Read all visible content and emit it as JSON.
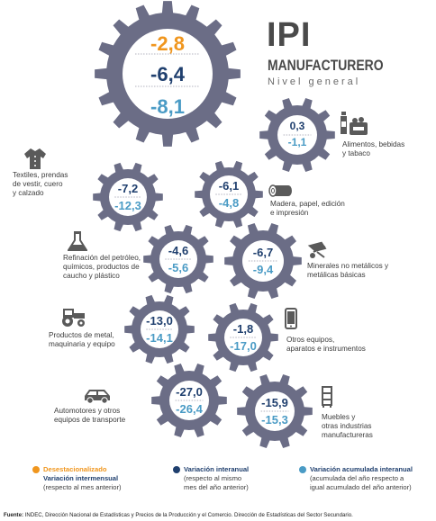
{
  "title": {
    "main": "IPI",
    "sub": "MANUFACTURERO",
    "level": "Nivel general"
  },
  "colors": {
    "gear": "#6b6d86",
    "orange": "#f0961e",
    "navy": "#1f3f6e",
    "light_blue": "#4a9bc5"
  },
  "general": {
    "desestacionalizado": "-2,8",
    "interanual": "-6,4",
    "acumulada": "-8,1"
  },
  "sectors": [
    {
      "name": "Alimentos, bebidas y tabaco",
      "interanual": "0,3",
      "acumulada": "-1,1",
      "icon": "food-bottles-icon"
    },
    {
      "name": "Textiles, prendas de vestir, cuero y calzado",
      "interanual": "-7,2",
      "acumulada": "-12,3",
      "icon": "shirt-icon"
    },
    {
      "name": "Madera, papel, edición e impresión",
      "interanual": "-6,1",
      "acumulada": "-4,8",
      "icon": "wood-log-icon"
    },
    {
      "name": "Refinación del petróleo, químicos, productos de caucho y plástico",
      "interanual": "-4,6",
      "acumulada": "-5,6",
      "icon": "flask-icon"
    },
    {
      "name": "Minerales no metálicos y metálicas básicas",
      "interanual": "-6,7",
      "acumulada": "-9,4",
      "icon": "wheelbarrow-icon"
    },
    {
      "name": "Productos de metal, maquinaria y equipo",
      "interanual": "-13,0",
      "acumulada": "-14,1",
      "icon": "tractor-icon"
    },
    {
      "name": "Otros equipos, aparatos e instrumentos",
      "interanual": "-1,8",
      "acumulada": "-17,0",
      "icon": "phone-icon"
    },
    {
      "name": "Automotores y otros equipos de transporte",
      "interanual": "-27,0",
      "acumulada": "-26,4",
      "icon": "car-icon"
    },
    {
      "name": "Muebles y otras industrias manufactureras",
      "interanual": "-15,9",
      "acumulada": "-15,3",
      "icon": "dresser-icon"
    }
  ],
  "labels": {
    "alimentos": "Alimentos, bebidas\ny tabaco",
    "textiles": "Textiles, prendas\nde vestir, cuero\ny calzado",
    "madera": "Madera, papel, edición\ne impresión",
    "refinacion": "Refinación del petróleo,\nquímicos, productos de\ncaucho y plástico",
    "minerales": "Minerales no metálicos y\nmetálicas básicas",
    "metal": "Productos de metal,\nmaquinaria y equipo",
    "otros_equipos": "Otros equipos,\naparatos e instrumentos",
    "automotores": "Automotores y otros\nequipos de transporte",
    "muebles": "Muebles y\notras industrias\nmanufactureras"
  },
  "legend": [
    {
      "title": "Desestacionalizado",
      "text_bold": "Variación intermensual",
      "text": "(respecto al mes anterior)"
    },
    {
      "title": "Variación interanual",
      "text": "(respecto al mismo\nmes del año anterior)"
    },
    {
      "title": "Variación acumulada interanual",
      "text": "(acumulada del año respecto a\nigual acumulado del año anterior)"
    }
  ],
  "footer": {
    "label": "Fuente:",
    "text": "INDEC, Dirección Nacional de Estadísticas y Precios de la Producción y el Comercio. Dirección de Estadísticas del Sector Secundario."
  }
}
